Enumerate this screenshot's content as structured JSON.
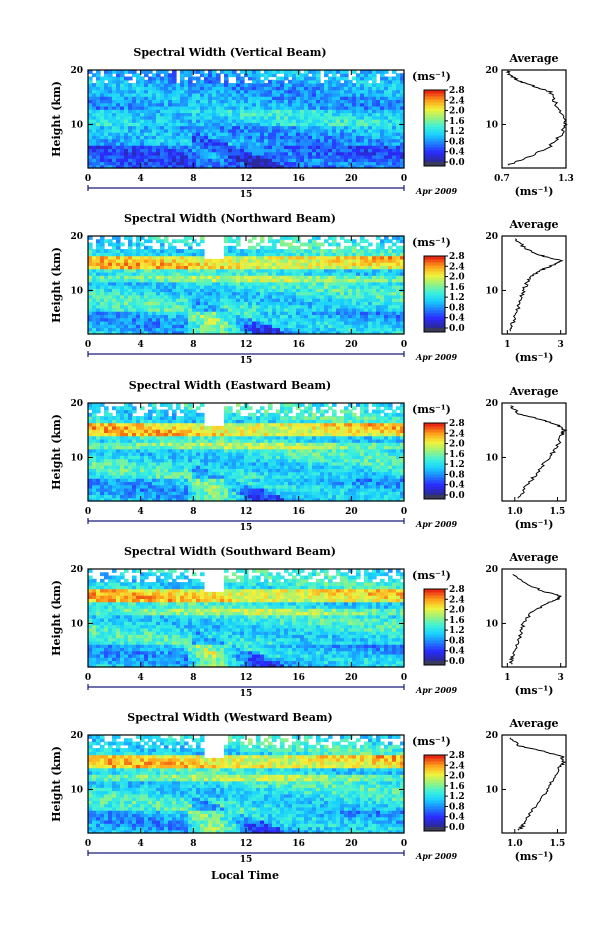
{
  "figure": {
    "xlabel": "Local Time",
    "date_label": "Apr 2009",
    "day_label": "15",
    "colorbar_unit": "(ms⁻¹)",
    "average_title": "Average",
    "average_unit": "(ms⁻¹)"
  },
  "chart_data": [
    {
      "type": "heatmap",
      "title": "Spectral Width (Vertical Beam)",
      "xlabel": "",
      "ylabel": "Height (km)",
      "xlim": [
        0,
        24
      ],
      "ylim": [
        2,
        20
      ],
      "xticks": [
        "0",
        "4",
        "8",
        "12",
        "16",
        "20",
        "0"
      ],
      "yticks": [
        "10",
        "20"
      ],
      "colorbar": {
        "min": 0.0,
        "max": 2.8,
        "ticks": [
          "0.0",
          "0.4",
          "0.8",
          "1.2",
          "1.6",
          "2.0",
          "2.4",
          "2.8"
        ]
      },
      "average_profile": {
        "xlim": [
          0.7,
          1.3
        ],
        "xticks": [
          "0.7",
          "1.3"
        ],
        "ylim": [
          2,
          20
        ],
        "height": [
          2.5,
          4,
          6,
          8,
          10,
          12,
          14,
          16,
          17,
          18,
          19,
          19.8
        ],
        "value": [
          0.75,
          0.95,
          1.15,
          1.25,
          1.3,
          1.25,
          1.2,
          1.15,
          1.0,
          0.85,
          0.78,
          0.75
        ]
      }
    },
    {
      "type": "heatmap",
      "title": "Spectral Width (Northward Beam)",
      "xlabel": "",
      "ylabel": "Height (km)",
      "xlim": [
        0,
        24
      ],
      "ylim": [
        2,
        20
      ],
      "xticks": [
        "0",
        "4",
        "8",
        "12",
        "16",
        "20",
        "0"
      ],
      "yticks": [
        "10",
        "20"
      ],
      "colorbar": {
        "min": 0.0,
        "max": 2.8,
        "ticks": [
          "0.0",
          "0.4",
          "0.8",
          "1.2",
          "1.6",
          "2.0",
          "2.4",
          "2.8"
        ]
      },
      "average_profile": {
        "xlim": [
          0.8,
          3.2
        ],
        "xticks": [
          "1",
          "3"
        ],
        "ylim": [
          2,
          20
        ],
        "height": [
          2.5,
          4,
          6,
          8,
          10,
          12,
          13,
          14,
          15,
          15.5,
          16.5,
          18,
          19.5
        ],
        "value": [
          1.1,
          1.2,
          1.35,
          1.5,
          1.6,
          1.8,
          2.0,
          2.4,
          2.9,
          3.0,
          2.2,
          1.6,
          1.3
        ]
      }
    },
    {
      "type": "heatmap",
      "title": "Spectral Width (Eastward Beam)",
      "xlabel": "",
      "ylabel": "Height (km)",
      "xlim": [
        0,
        24
      ],
      "ylim": [
        2,
        20
      ],
      "xticks": [
        "0",
        "4",
        "8",
        "12",
        "16",
        "20",
        "0"
      ],
      "yticks": [
        "10",
        "20"
      ],
      "colorbar": {
        "min": 0.0,
        "max": 2.8,
        "ticks": [
          "0.0",
          "0.4",
          "0.8",
          "1.2",
          "1.6",
          "2.0",
          "2.4",
          "2.8"
        ]
      },
      "average_profile": {
        "xlim": [
          0.85,
          1.6
        ],
        "xticks": [
          "1.0",
          "1.5"
        ],
        "ylim": [
          2,
          20
        ],
        "height": [
          2.5,
          4,
          6,
          8,
          10,
          12,
          14,
          15,
          16,
          17,
          18,
          19.5
        ],
        "value": [
          1.05,
          1.1,
          1.2,
          1.3,
          1.4,
          1.5,
          1.55,
          1.58,
          1.5,
          1.3,
          1.05,
          0.95
        ]
      }
    },
    {
      "type": "heatmap",
      "title": "Spectral Width (Southward Beam)",
      "xlabel": "",
      "ylabel": "Height (km)",
      "xlim": [
        0,
        24
      ],
      "ylim": [
        2,
        20
      ],
      "xticks": [
        "0",
        "4",
        "8",
        "12",
        "16",
        "20",
        "0"
      ],
      "yticks": [
        "10",
        "20"
      ],
      "colorbar": {
        "min": 0.0,
        "max": 2.8,
        "ticks": [
          "0.0",
          "0.4",
          "0.8",
          "1.2",
          "1.6",
          "2.0",
          "2.4",
          "2.8"
        ]
      },
      "average_profile": {
        "xlim": [
          0.8,
          3.2
        ],
        "xticks": [
          "1",
          "3"
        ],
        "ylim": [
          2,
          20
        ],
        "height": [
          2.5,
          4,
          6,
          8,
          10,
          12,
          13.5,
          14.5,
          15,
          16,
          17.5,
          19
        ],
        "value": [
          1.1,
          1.2,
          1.35,
          1.5,
          1.6,
          1.9,
          2.4,
          2.9,
          3.0,
          2.3,
          1.6,
          1.2
        ]
      }
    },
    {
      "type": "heatmap",
      "title": "Spectral Width (Westward Beam)",
      "xlabel": "Local Time",
      "ylabel": "Height (km)",
      "xlim": [
        0,
        24
      ],
      "ylim": [
        2,
        20
      ],
      "xticks": [
        "0",
        "4",
        "8",
        "12",
        "16",
        "20",
        "0"
      ],
      "yticks": [
        "10",
        "20"
      ],
      "colorbar": {
        "min": 0.0,
        "max": 2.8,
        "ticks": [
          "0.0",
          "0.4",
          "0.8",
          "1.2",
          "1.6",
          "2.0",
          "2.4",
          "2.8"
        ]
      },
      "average_profile": {
        "xlim": [
          0.85,
          1.6
        ],
        "xticks": [
          "1.0",
          "1.5"
        ],
        "ylim": [
          2,
          20
        ],
        "height": [
          2.5,
          4,
          6,
          8,
          10,
          12,
          14,
          15,
          16,
          17,
          18,
          19.5
        ],
        "value": [
          1.05,
          1.12,
          1.2,
          1.3,
          1.38,
          1.45,
          1.52,
          1.58,
          1.55,
          1.35,
          1.05,
          0.95
        ]
      }
    }
  ],
  "colors": {
    "jet": [
      "#2a2a9c",
      "#2a2aff",
      "#1f7dff",
      "#19cfff",
      "#3ff2d9",
      "#9cf27a",
      "#f2f23a",
      "#ff9f1a",
      "#e82a12"
    ],
    "colorbar_bottom": "#3a3a5a"
  }
}
